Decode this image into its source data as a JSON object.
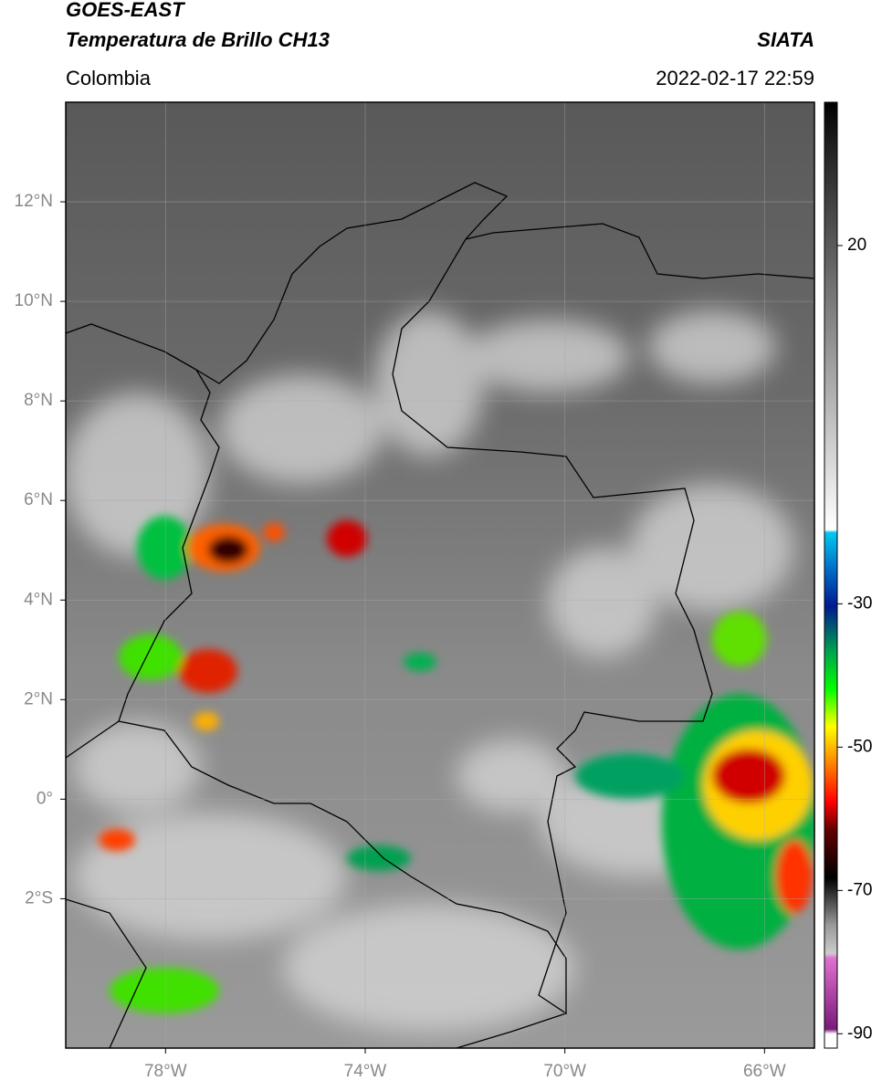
{
  "header": {
    "title": "GOES-EAST",
    "subtitle": "Temperatura de Brillo CH13",
    "source": "SIATA",
    "region": "Colombia",
    "datetime": "2022-02-17 22:59"
  },
  "map": {
    "lonlim": [
      -80,
      -65
    ],
    "latlim": [
      -5,
      14
    ],
    "lonticks": [
      {
        "value": -78,
        "label": "78°W"
      },
      {
        "value": -74,
        "label": "74°W"
      },
      {
        "value": -70,
        "label": "70°W"
      },
      {
        "value": -66,
        "label": "66°W"
      }
    ],
    "latticks": [
      {
        "value": 12,
        "label": "12°N"
      },
      {
        "value": 10,
        "label": "10°N"
      },
      {
        "value": 8,
        "label": "8°N"
      },
      {
        "value": 6,
        "label": "6°N"
      },
      {
        "value": 4,
        "label": "4°N"
      },
      {
        "value": 2,
        "label": "2°N"
      },
      {
        "value": 0,
        "label": "0°"
      },
      {
        "value": -2,
        "label": "2°S"
      }
    ],
    "grid": true
  },
  "colorbar": {
    "lim": [
      -92,
      40
    ],
    "ticks": [
      20,
      -30,
      -50,
      -70,
      -90
    ]
  }
}
